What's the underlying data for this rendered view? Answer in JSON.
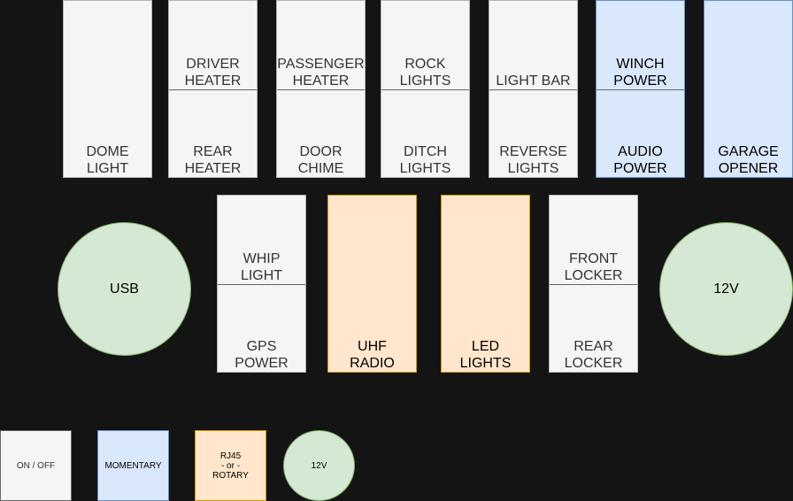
{
  "top_row": [
    {
      "top": "",
      "bottom": "DOME\nLIGHT",
      "style": "grey"
    },
    {
      "top": "DRIVER\nHEATER",
      "bottom": "REAR\nHEATER",
      "style": "grey"
    },
    {
      "top": "PASSENGER\nHEATER",
      "bottom": "DOOR\nCHIME",
      "style": "grey"
    },
    {
      "top": "ROCK\nLIGHTS",
      "bottom": "DITCH\nLIGHTS",
      "style": "grey"
    },
    {
      "top": "LIGHT BAR",
      "bottom": "REVERSE\nLIGHTS",
      "style": "grey"
    },
    {
      "top": "WINCH\nPOWER",
      "bottom": "AUDIO\nPOWER",
      "style": "blue"
    },
    {
      "top": "",
      "bottom": "GARAGE\nOPENER",
      "style": "blue"
    }
  ],
  "middle_row": {
    "usb": "USB",
    "whip": {
      "top": "WHIP\nLIGHT",
      "bottom": "GPS\nPOWER"
    },
    "uhf": "UHF\nRADIO",
    "led": "LED\nLIGHTS",
    "locker": {
      "top": "FRONT\nLOCKER",
      "bottom": "REAR\nLOCKER"
    },
    "twelve_v": "12V"
  },
  "legend": {
    "on_off": "ON / OFF",
    "momentary": "MOMENTARY",
    "rj45": "RJ45\n- or -\nROTARY",
    "twelve_v": "12V"
  },
  "colors": {
    "background": "#141414",
    "grey_fill": "#f5f5f5",
    "blue_fill": "#dae8fc",
    "orange_fill": "#ffe6cc",
    "green_fill": "#d5e8d4"
  }
}
